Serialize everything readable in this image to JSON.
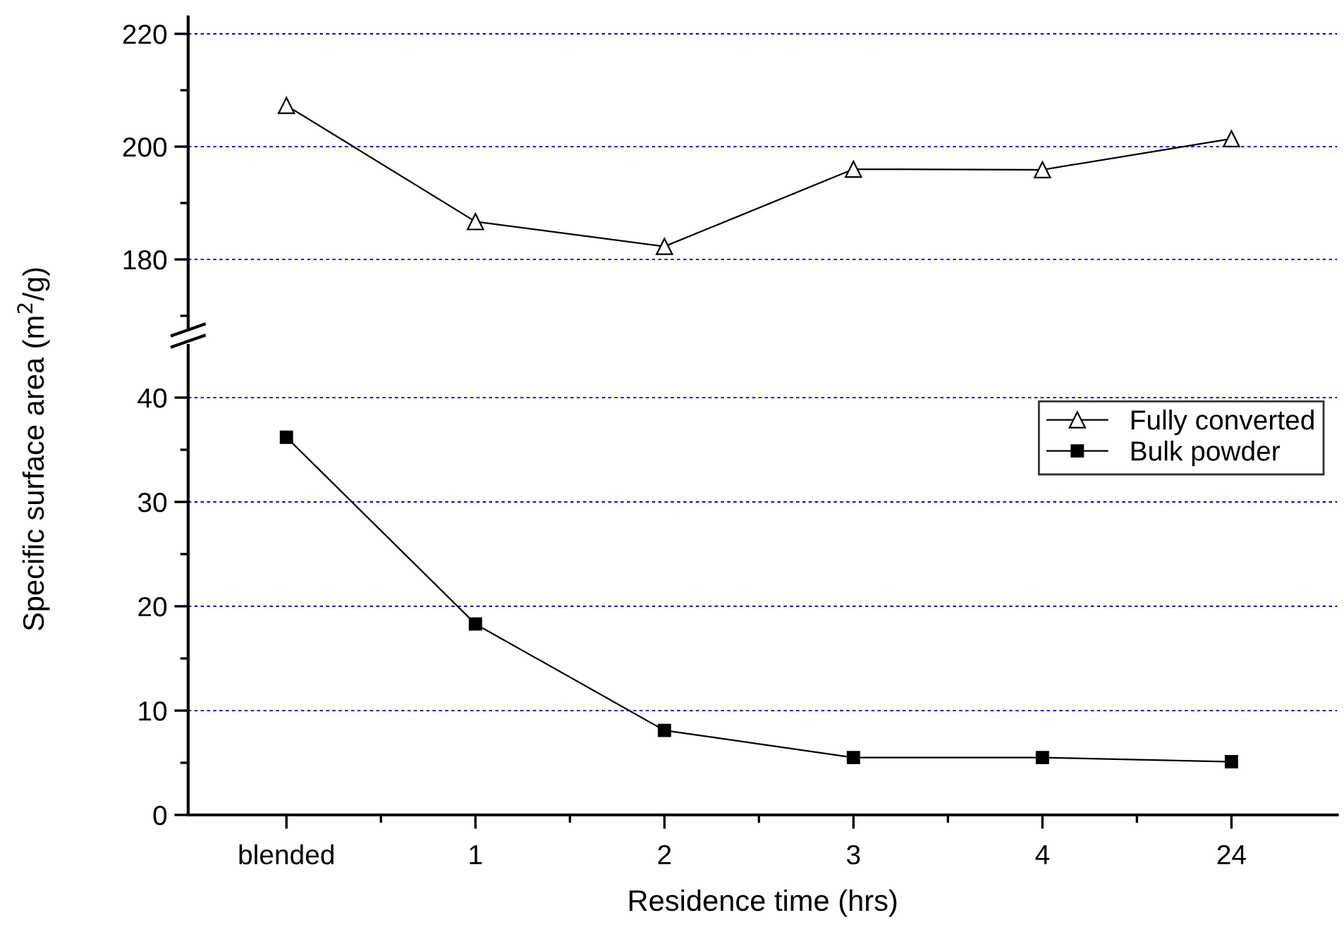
{
  "chart_data": [
    {
      "type": "line",
      "ylim": [
        168,
        223
      ],
      "yticks": [
        {
          "value": 170,
          "label": null
        },
        180,
        {
          "value": 190,
          "label": null
        },
        200,
        {
          "value": 210,
          "label": null
        },
        220
      ],
      "grid": "y",
      "tick_labels": "y",
      "legend": "bottom right",
      "marker": "triangle",
      "line_style": "solid",
      "series": [
        {
          "name": "Fully converted",
          "color": "#000000",
          "values": [
            207.3,
            186.7,
            182.3,
            196.0,
            195.9,
            201.4
          ]
        }
      ]
    },
    {
      "type": "line",
      "categories": [
        "blended",
        "1",
        "2",
        "3",
        "4",
        "24"
      ],
      "ylim": [
        0,
        45
      ],
      "yticks": [
        0,
        {
          "value": 5,
          "label": null
        },
        10,
        {
          "value": 15,
          "label": null
        },
        20,
        {
          "value": 25,
          "label": null
        },
        30,
        {
          "value": 35,
          "label": null
        },
        40
      ],
      "grid": "y",
      "legend": "top right",
      "marker": "square",
      "line_style": "solid",
      "xlabel": "Residence time (hrs)",
      "ylabel": "Specific surface area (m$^{2}$/g)",
      "series": [
        {
          "name": "Bulk powder",
          "color": "#000000",
          "values": [
            36.2,
            18.3,
            8.1,
            5.5,
            5.5,
            5.1
          ]
        }
      ]
    }
  ]
}
